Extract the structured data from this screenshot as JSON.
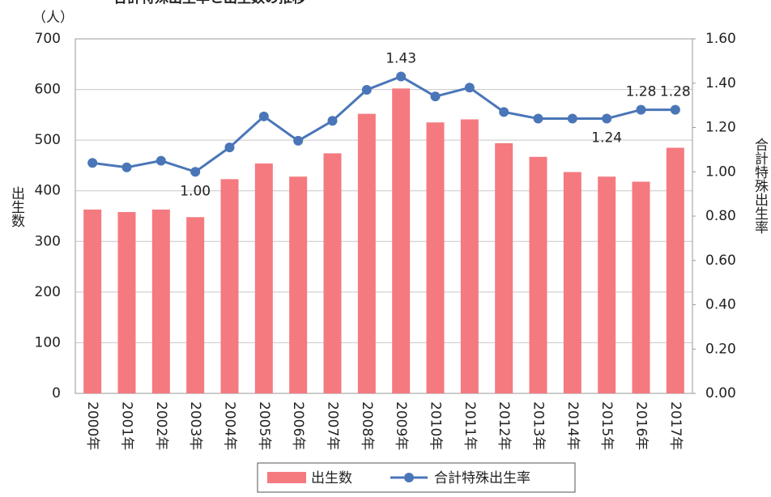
{
  "chart_data": {
    "type": "bar_line",
    "title": "合計特殊出生率と出生数の推移",
    "y_unit": "（人）",
    "y_label": "出生数",
    "y2_label": "合計特殊出生率",
    "categories": [
      "2000年",
      "2001年",
      "2002年",
      "2003年",
      "2004年",
      "2005年",
      "2006年",
      "2007年",
      "2008年",
      "2009年",
      "2010年",
      "2011年",
      "2012年",
      "2013年",
      "2014年",
      "2015年",
      "2016年",
      "2017年"
    ],
    "series": [
      {
        "name": "出生数",
        "type": "bar",
        "color": "#f47a80",
        "values": [
          363,
          358,
          363,
          348,
          423,
          454,
          428,
          474,
          552,
          602,
          535,
          541,
          494,
          467,
          437,
          428,
          418,
          485
        ]
      },
      {
        "name": "合計特殊出生率",
        "type": "line",
        "axis": "y2",
        "color": "#4a76b8",
        "values": [
          1.04,
          1.02,
          1.05,
          1.0,
          1.11,
          1.25,
          1.14,
          1.23,
          1.37,
          1.43,
          1.34,
          1.38,
          1.27,
          1.24,
          1.24,
          1.24,
          1.28,
          1.28
        ],
        "value_labels": [
          null,
          null,
          null,
          "1.00",
          null,
          null,
          null,
          null,
          null,
          "1.43",
          null,
          null,
          null,
          null,
          null,
          "1.24",
          "1.28",
          "1.28"
        ]
      }
    ],
    "ylim": [
      0,
      700
    ],
    "yticks": [
      0,
      100,
      200,
      300,
      400,
      500,
      600,
      700
    ],
    "y2lim": [
      0,
      1.6
    ],
    "y2ticks": [
      {
        "value": 0,
        "label": "0.00"
      },
      {
        "value": 0.2,
        "label": "0.20"
      },
      {
        "value": 0.4,
        "label": "0.40"
      },
      {
        "value": 0.6,
        "label": "0.60"
      },
      {
        "value": 0.8,
        "label": "0.80"
      },
      {
        "value": 1,
        "label": "1.00"
      },
      {
        "value": 1.2,
        "label": "1.20"
      },
      {
        "value": 1.4,
        "label": "1.40"
      },
      {
        "value": 1.6,
        "label": "1.60"
      }
    ],
    "grid": true
  }
}
